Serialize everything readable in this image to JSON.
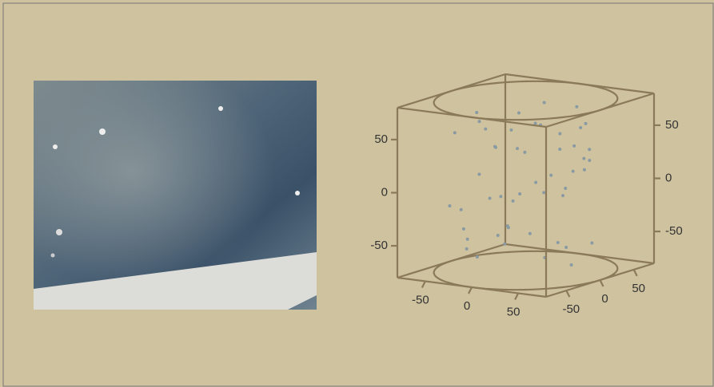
{
  "chart_data": {
    "type": "scatter3d",
    "x": [
      -60,
      -45,
      -30,
      -10,
      5,
      20,
      35,
      50,
      65,
      -55,
      -40,
      -20,
      0,
      15,
      30,
      45,
      60,
      -65,
      -35,
      -15,
      10,
      25,
      40,
      55,
      -50,
      -25,
      -5,
      20,
      45,
      -60,
      -30,
      0,
      30,
      60,
      -40,
      -10,
      15,
      35,
      -50,
      -20,
      10,
      40,
      -45,
      -15,
      25,
      50,
      -5,
      5,
      -30,
      30
    ],
    "y": [
      10,
      -30,
      40,
      -55,
      20,
      -40,
      50,
      -10,
      5,
      -20,
      45,
      -60,
      15,
      55,
      -35,
      25,
      -15,
      30,
      -5,
      35,
      -45,
      60,
      0,
      -25,
      50,
      -10,
      -65,
      10,
      -40,
      -30,
      20,
      60,
      45,
      -35,
      -50,
      5,
      30,
      -20,
      0,
      55,
      -55,
      15,
      35,
      -25,
      -60,
      20,
      -30,
      65,
      -45,
      40
    ],
    "z": [
      60,
      -40,
      20,
      70,
      -10,
      45,
      -60,
      5,
      30,
      -25,
      55,
      -50,
      0,
      65,
      -35,
      15,
      -65,
      40,
      -15,
      50,
      -45,
      25,
      -5,
      60,
      -30,
      35,
      -55,
      10,
      70,
      -20,
      45,
      -70,
      20,
      -40,
      55,
      -10,
      30,
      -60,
      5,
      65,
      -35,
      15,
      -50,
      40,
      -25,
      60,
      -5,
      25,
      -45,
      50
    ],
    "color": "#8a9aa2",
    "xlim": [
      -80,
      80
    ],
    "ylim": [
      -80,
      80
    ],
    "zlim": [
      -80,
      80
    ],
    "xticks": [
      -50,
      0,
      50
    ],
    "yticks": [
      -50,
      0,
      50
    ],
    "zticks": [
      -50,
      0,
      50
    ]
  }
}
